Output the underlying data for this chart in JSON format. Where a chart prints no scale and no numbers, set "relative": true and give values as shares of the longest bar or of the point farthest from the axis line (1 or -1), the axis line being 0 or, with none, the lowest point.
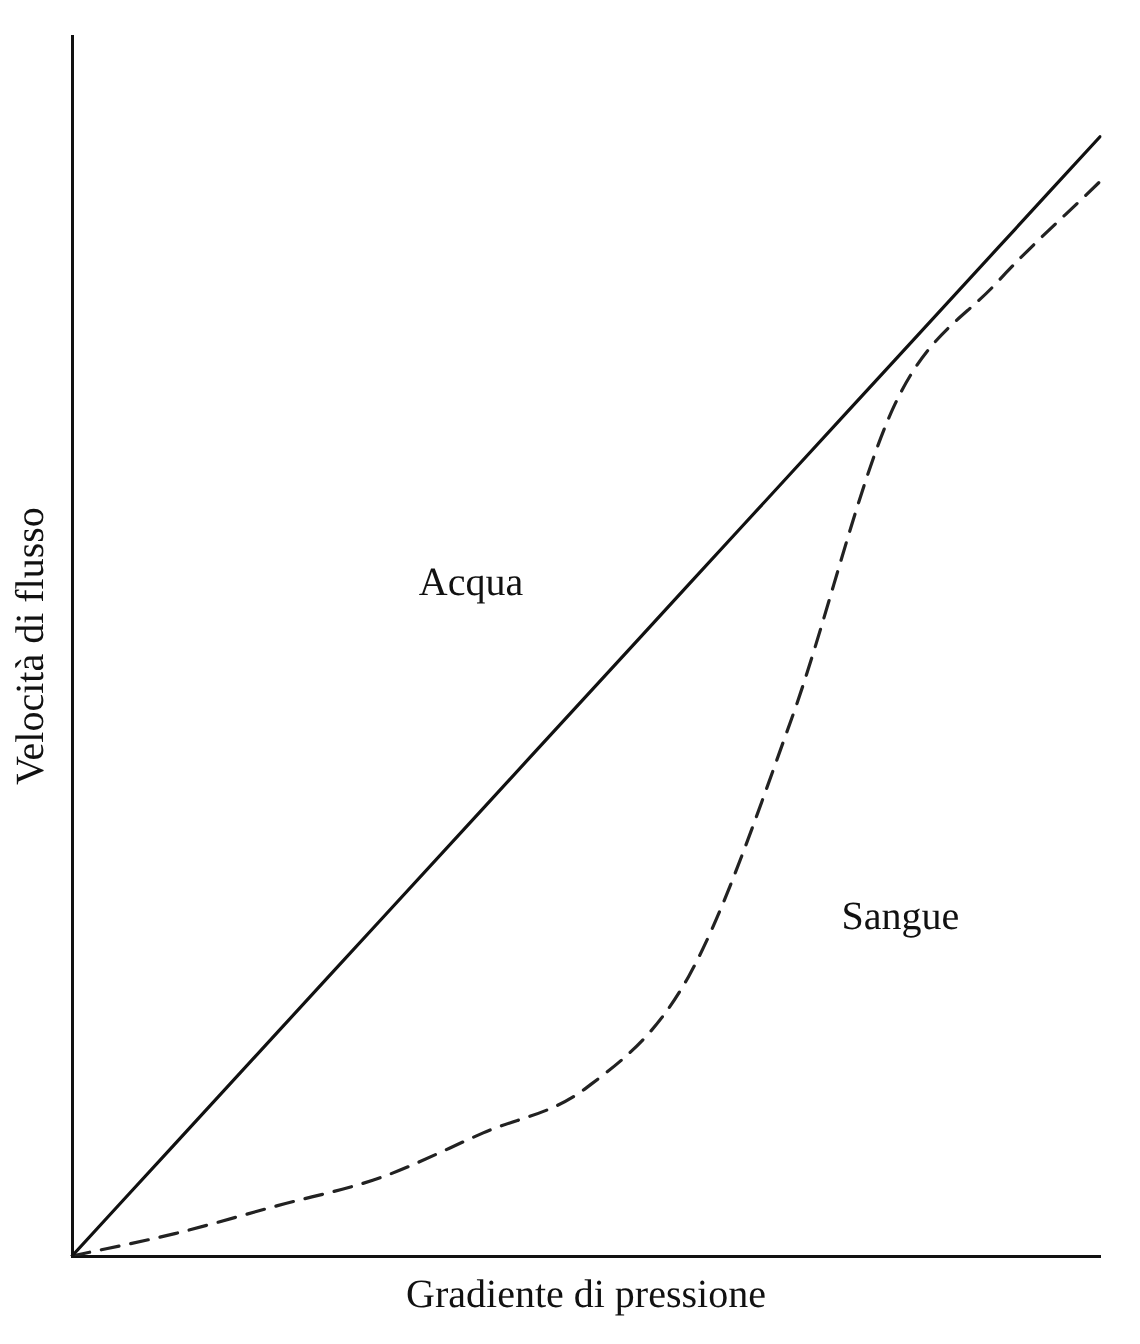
{
  "chart_data": {
    "type": "line",
    "relative": true,
    "xlabel": "Gradiente di pressione",
    "ylabel": "Velocità di flusso",
    "categories": [
      null,
      null,
      null,
      null,
      null,
      null,
      null,
      null,
      null,
      null,
      null
    ],
    "grid": false,
    "legend": false,
    "marker": "none",
    "series": [
      {
        "name": "Acqua",
        "color": "#111111",
        "line_style": "solid",
        "values": [
          0,
          0.1,
          0.2,
          0.3,
          0.4,
          0.5,
          0.6,
          0.7,
          0.8,
          0.9,
          1
        ]
      },
      {
        "name": "Sangue",
        "color": "#222222",
        "line_style": "dashed",
        "values": [
          0,
          0.02,
          0.045,
          0.07,
          0.11,
          0.15,
          0.25,
          0.48,
          0.76,
          0.87,
          0.96
        ]
      }
    ]
  }
}
